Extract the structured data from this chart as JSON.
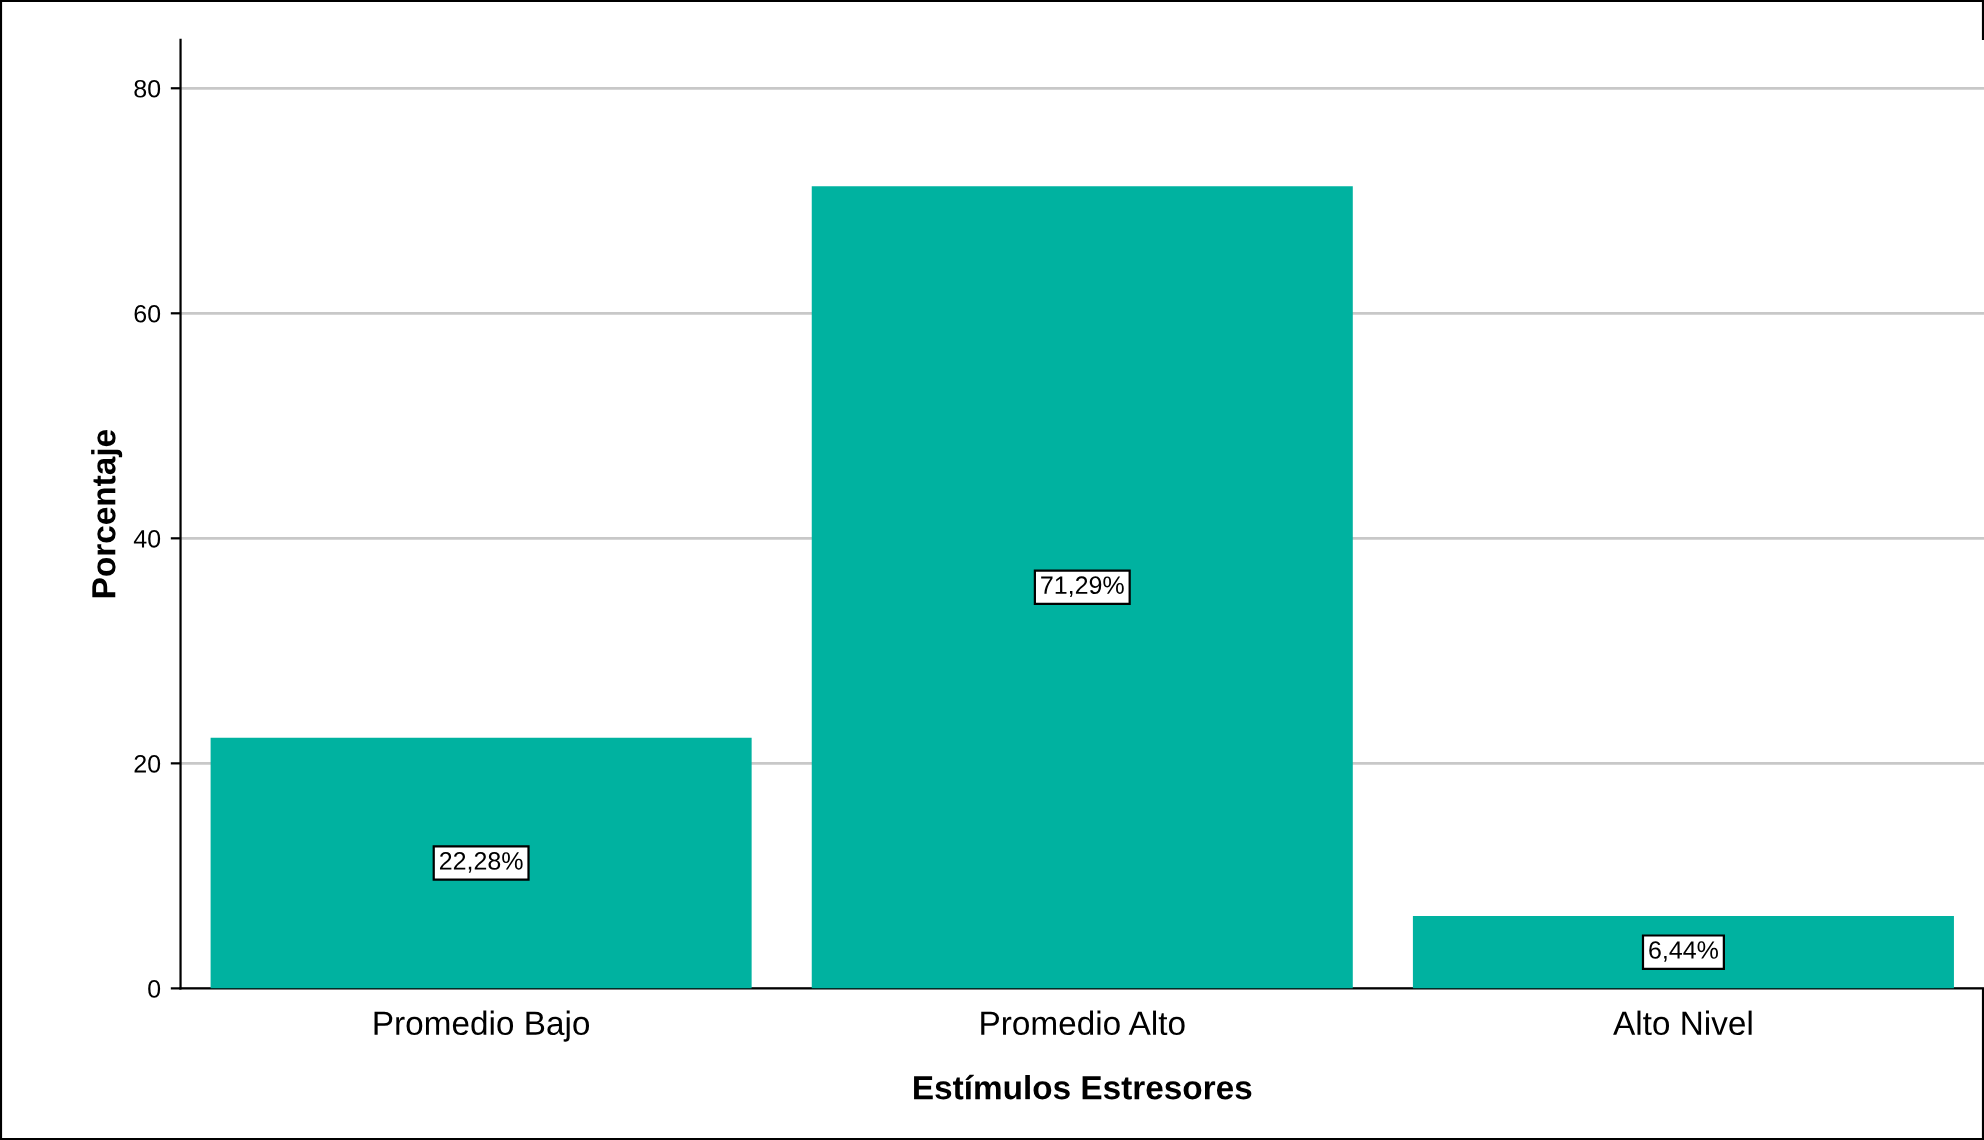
{
  "chart_data": {
    "type": "bar",
    "xlabel": "Estímulos Estresores",
    "ylabel": "Porcentaje",
    "categories": [
      "Promedio Bajo",
      "Promedio Alto",
      "Alto Nivel"
    ],
    "values": [
      22.28,
      71.29,
      6.44
    ],
    "value_labels": [
      "22,28%",
      "71,29%",
      "6,44%"
    ],
    "color": "#00b2a0",
    "ylim": [
      0,
      84.3
    ],
    "yticks": [
      0,
      20,
      40,
      60,
      80
    ],
    "grid": "y",
    "legend": false
  }
}
